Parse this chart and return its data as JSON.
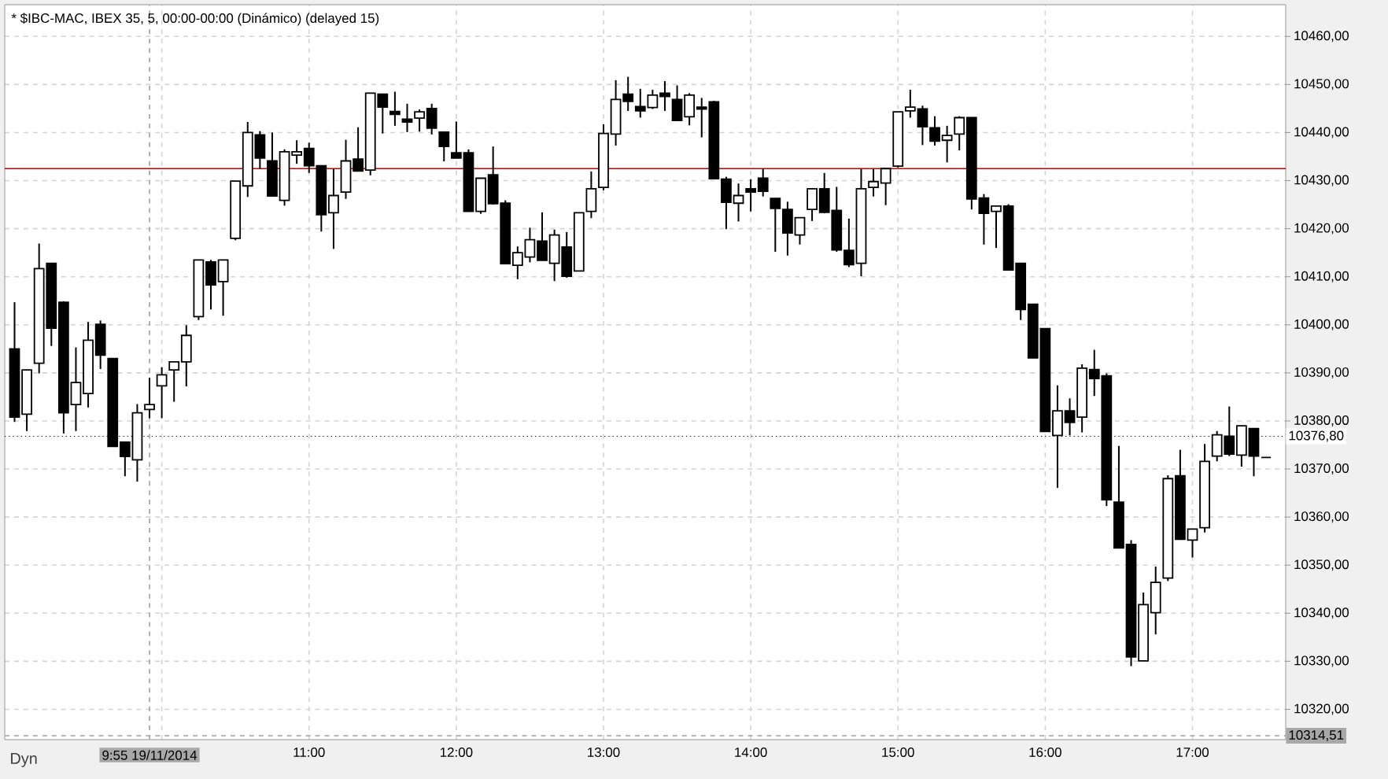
{
  "chart_data": {
    "type": "candlestick",
    "title": "* $IBC-MAC, IBEX 35, 5, 00:00-00:00 (Dinámico) (delayed 15)",
    "x": [
      "2014-11-19T09:00",
      "2014-11-19T09:05",
      "2014-11-19T09:10",
      "2014-11-19T09:15",
      "2014-11-19T09:20",
      "2014-11-19T09:25",
      "2014-11-19T09:30",
      "2014-11-19T09:35",
      "2014-11-19T09:40",
      "2014-11-19T09:45",
      "2014-11-19T09:50",
      "2014-11-19T09:55",
      "2014-11-19T10:00",
      "2014-11-19T10:05",
      "2014-11-19T10:10",
      "2014-11-19T10:15",
      "2014-11-19T10:20",
      "2014-11-19T10:25",
      "2014-11-19T10:30",
      "2014-11-19T10:35",
      "2014-11-19T10:40",
      "2014-11-19T10:45",
      "2014-11-19T10:50",
      "2014-11-19T10:55",
      "2014-11-19T11:00",
      "2014-11-19T11:05",
      "2014-11-19T11:10",
      "2014-11-19T11:15",
      "2014-11-19T11:20",
      "2014-11-19T11:25",
      "2014-11-19T11:30",
      "2014-11-19T11:35",
      "2014-11-19T11:40",
      "2014-11-19T11:45",
      "2014-11-19T11:50",
      "2014-11-19T11:55",
      "2014-11-19T12:00",
      "2014-11-19T12:05",
      "2014-11-19T12:10",
      "2014-11-19T12:15",
      "2014-11-19T12:20",
      "2014-11-19T12:25",
      "2014-11-19T12:30",
      "2014-11-19T12:35",
      "2014-11-19T12:40",
      "2014-11-19T12:45",
      "2014-11-19T12:50",
      "2014-11-19T12:55",
      "2014-11-19T13:00",
      "2014-11-19T13:05",
      "2014-11-19T13:10",
      "2014-11-19T13:15",
      "2014-11-19T13:20",
      "2014-11-19T13:25",
      "2014-11-19T13:30",
      "2014-11-19T13:35",
      "2014-11-19T13:40",
      "2014-11-19T13:45",
      "2014-11-19T13:50",
      "2014-11-19T13:55",
      "2014-11-19T14:00",
      "2014-11-19T14:05",
      "2014-11-19T14:10",
      "2014-11-19T14:15",
      "2014-11-19T14:20",
      "2014-11-19T14:25",
      "2014-11-19T14:30",
      "2014-11-19T14:35",
      "2014-11-19T14:40",
      "2014-11-19T14:45",
      "2014-11-19T14:50",
      "2014-11-19T14:55",
      "2014-11-19T15:00",
      "2014-11-19T15:05",
      "2014-11-19T15:10",
      "2014-11-19T15:15",
      "2014-11-19T15:20",
      "2014-11-19T15:25",
      "2014-11-19T15:30",
      "2014-11-19T15:35",
      "2014-11-19T15:40",
      "2014-11-19T15:45",
      "2014-11-19T15:50",
      "2014-11-19T15:55",
      "2014-11-19T16:00",
      "2014-11-19T16:05",
      "2014-11-19T16:10",
      "2014-11-19T16:15",
      "2014-11-19T16:20",
      "2014-11-19T16:25",
      "2014-11-19T16:30",
      "2014-11-19T16:35",
      "2014-11-19T16:40",
      "2014-11-19T16:45",
      "2014-11-19T16:50",
      "2014-11-19T16:55",
      "2014-11-19T17:00",
      "2014-11-19T17:05",
      "2014-11-19T17:10",
      "2014-11-19T17:15",
      "2014-11-19T17:20",
      "2014-11-19T17:25",
      "2014-11-19T17:30"
    ],
    "ohlc": [
      [
        10395.0,
        10404.7,
        10379.8,
        10380.8
      ],
      [
        10381.4,
        10390.6,
        10377.9,
        10390.6
      ],
      [
        10392.0,
        10416.9,
        10389.9,
        10411.7
      ],
      [
        10412.8,
        10412.8,
        10395.6,
        10399.3
      ],
      [
        10404.7,
        10404.9,
        10377.4,
        10381.7
      ],
      [
        10383.4,
        10395.3,
        10377.9,
        10388.0
      ],
      [
        10385.7,
        10400.6,
        10382.8,
        10396.8
      ],
      [
        10400.1,
        10400.9,
        10390.8,
        10393.7
      ],
      [
        10393.0,
        10393.0,
        10374.7,
        10374.7
      ],
      [
        10375.6,
        10375.6,
        10368.5,
        10372.6
      ],
      [
        10371.9,
        10383.5,
        10367.4,
        10381.7
      ],
      [
        10382.4,
        10389.0,
        10380.6,
        10383.4
      ],
      [
        10387.3,
        10391.2,
        10380.6,
        10389.6
      ],
      [
        10390.6,
        10392.3,
        10384.0,
        10392.3
      ],
      [
        10392.3,
        10399.9,
        10387.2,
        10397.8
      ],
      [
        10401.7,
        10413.5,
        10401.0,
        10413.5
      ],
      [
        10413.1,
        10413.5,
        10403.2,
        10408.3
      ],
      [
        10409.0,
        10413.5,
        10401.9,
        10413.5
      ],
      [
        10418.0,
        10429.9,
        10417.6,
        10429.9
      ],
      [
        10428.9,
        10442.2,
        10426.6,
        10440.0
      ],
      [
        10439.5,
        10440.3,
        10432.5,
        10434.7
      ],
      [
        10434.1,
        10440.0,
        10426.8,
        10426.8
      ],
      [
        10425.9,
        10436.5,
        10424.8,
        10436.0
      ],
      [
        10435.3,
        10438.4,
        10433.5,
        10436.0
      ],
      [
        10436.7,
        10437.9,
        10431.6,
        10433.1
      ],
      [
        10433.1,
        10433.1,
        10419.4,
        10422.9
      ],
      [
        10423.3,
        10432.4,
        10415.8,
        10426.9
      ],
      [
        10427.6,
        10438.5,
        10426.2,
        10434.1
      ],
      [
        10434.5,
        10441.1,
        10432.0,
        10432.0
      ],
      [
        10432.2,
        10448.2,
        10431.1,
        10448.2
      ],
      [
        10448.0,
        10448.0,
        10439.8,
        10445.3
      ],
      [
        10444.4,
        10448.5,
        10441.4,
        10443.8
      ],
      [
        10442.8,
        10446.0,
        10440.1,
        10442.2
      ],
      [
        10443.0,
        10444.8,
        10440.2,
        10444.3
      ],
      [
        10445.0,
        10446.0,
        10439.6,
        10440.9
      ],
      [
        10440.1,
        10440.1,
        10434.0,
        10437.1
      ],
      [
        10435.8,
        10442.3,
        10434.7,
        10434.7
      ],
      [
        10435.8,
        10436.5,
        10423.6,
        10423.6
      ],
      [
        10423.6,
        10430.5,
        10423.1,
        10430.5
      ],
      [
        10431.2,
        10437.1,
        10425.0,
        10425.2
      ],
      [
        10425.3,
        10425.9,
        10412.7,
        10412.7
      ],
      [
        10412.4,
        10416.3,
        10409.5,
        10415.0
      ],
      [
        10414.1,
        10420.2,
        10413.0,
        10417.7
      ],
      [
        10417.4,
        10423.4,
        10413.4,
        10413.4
      ],
      [
        10412.8,
        10419.8,
        10409.1,
        10418.7
      ],
      [
        10416.2,
        10419.3,
        10409.8,
        10410.1
      ],
      [
        10411.2,
        10423.3,
        10411.2,
        10423.3
      ],
      [
        10423.6,
        10431.9,
        10422.2,
        10428.3
      ],
      [
        10428.6,
        10441.7,
        10428.0,
        10439.8
      ],
      [
        10439.7,
        10450.9,
        10437.3,
        10446.9
      ],
      [
        10448.0,
        10451.6,
        10444.5,
        10446.5
      ],
      [
        10445.4,
        10449.1,
        10443.1,
        10444.5
      ],
      [
        10445.2,
        10448.9,
        10444.9,
        10447.8
      ],
      [
        10448.2,
        10450.7,
        10444.5,
        10447.5
      ],
      [
        10446.9,
        10449.8,
        10442.5,
        10442.5
      ],
      [
        10443.3,
        10448.2,
        10441.5,
        10447.8
      ],
      [
        10445.3,
        10447.2,
        10439.0,
        10444.9
      ],
      [
        10446.4,
        10446.6,
        10430.4,
        10430.4
      ],
      [
        10430.3,
        10430.8,
        10419.9,
        10425.5
      ],
      [
        10425.3,
        10429.4,
        10421.5,
        10426.9
      ],
      [
        10428.3,
        10430.3,
        10423.6,
        10427.6
      ],
      [
        10430.5,
        10432.5,
        10426.7,
        10427.8
      ],
      [
        10426.3,
        10426.3,
        10415.2,
        10424.2
      ],
      [
        10424.0,
        10425.6,
        10414.4,
        10419.1
      ],
      [
        10418.7,
        10422.3,
        10416.7,
        10422.3
      ],
      [
        10424.0,
        10428.3,
        10421.6,
        10428.3
      ],
      [
        10428.3,
        10431.6,
        10423.2,
        10423.4
      ],
      [
        10423.8,
        10428.7,
        10415.2,
        10415.6
      ],
      [
        10415.5,
        10422.1,
        10412.0,
        10412.5
      ],
      [
        10412.8,
        10432.4,
        10410.1,
        10428.3
      ],
      [
        10428.6,
        10432.4,
        10426.7,
        10429.8
      ],
      [
        10429.5,
        10432.5,
        10424.9,
        10432.5
      ],
      [
        10433.0,
        10444.3,
        10432.7,
        10444.3
      ],
      [
        10444.5,
        10448.9,
        10443.1,
        10445.3
      ],
      [
        10444.9,
        10445.6,
        10437.4,
        10441.2
      ],
      [
        10441.0,
        10443.4,
        10437.3,
        10438.2
      ],
      [
        10438.4,
        10441.4,
        10433.8,
        10439.4
      ],
      [
        10439.7,
        10443.4,
        10436.3,
        10443.1
      ],
      [
        10443.1,
        10443.1,
        10424.0,
        10426.2
      ],
      [
        10426.4,
        10427.2,
        10416.7,
        10423.2
      ],
      [
        10423.6,
        10424.7,
        10416.0,
        10424.7
      ],
      [
        10424.7,
        10425.1,
        10411.4,
        10411.4
      ],
      [
        10412.8,
        10412.8,
        10401.0,
        10403.2
      ],
      [
        10404.3,
        10404.3,
        10393.1,
        10393.1
      ],
      [
        10399.2,
        10399.2,
        10377.8,
        10377.8
      ],
      [
        10377.0,
        10387.4,
        10366.1,
        10382.1
      ],
      [
        10382.1,
        10384.7,
        10377.0,
        10379.7
      ],
      [
        10380.8,
        10391.8,
        10377.6,
        10391.0
      ],
      [
        10390.7,
        10394.8,
        10385.2,
        10388.8
      ],
      [
        10389.4,
        10389.9,
        10362.3,
        10363.6
      ],
      [
        10363.1,
        10374.8,
        10353.6,
        10353.6
      ],
      [
        10354.3,
        10355.2,
        10329.0,
        10330.9
      ],
      [
        10330.1,
        10344.3,
        10330.1,
        10341.8
      ],
      [
        10340.1,
        10349.7,
        10335.6,
        10346.4
      ],
      [
        10347.3,
        10368.7,
        10346.7,
        10368.0
      ],
      [
        10368.6,
        10374.0,
        10355.4,
        10355.4
      ],
      [
        10355.2,
        10357.5,
        10351.6,
        10357.5
      ],
      [
        10357.8,
        10375.2,
        10356.8,
        10371.6
      ],
      [
        10372.7,
        10377.9,
        10371.6,
        10377.1
      ],
      [
        10376.8,
        10383.0,
        10372.7,
        10373.1
      ],
      [
        10372.9,
        10379.0,
        10370.5,
        10379.0
      ],
      [
        10378.4,
        10378.4,
        10368.5,
        10372.7
      ],
      [
        10372.4,
        10372.4,
        10372.4,
        10372.4
      ]
    ],
    "xlim": [
      "2014-11-19T08:56",
      "2014-11-19T17:38"
    ],
    "ylim": [
      10313.7,
      10466.6
    ],
    "xticks": [
      {
        "value": "2014-11-19T10:00",
        "label": null
      },
      {
        "value": "2014-11-19T11:00",
        "label": "11:00"
      },
      {
        "value": "2014-11-19T12:00",
        "label": "12:00"
      },
      {
        "value": "2014-11-19T13:00",
        "label": "13:00"
      },
      {
        "value": "2014-11-19T14:00",
        "label": "14:00"
      },
      {
        "value": "2014-11-19T15:00",
        "label": "15:00"
      },
      {
        "value": "2014-11-19T16:00",
        "label": "16:00"
      },
      {
        "value": "2014-11-19T17:00",
        "label": "17:00"
      }
    ],
    "yticks": [
      {
        "value": 10320,
        "label": "10320,00"
      },
      {
        "value": 10330,
        "label": "10330,00"
      },
      {
        "value": 10340,
        "label": "10340,00"
      },
      {
        "value": 10350,
        "label": "10350,00"
      },
      {
        "value": 10360,
        "label": "10360,00"
      },
      {
        "value": 10370,
        "label": "10370,00"
      },
      {
        "value": 10380,
        "label": "10380,00"
      },
      {
        "value": 10390,
        "label": "10390,00"
      },
      {
        "value": 10400,
        "label": "10400,00"
      },
      {
        "value": 10410,
        "label": "10410,00"
      },
      {
        "value": 10420,
        "label": "10420,00"
      },
      {
        "value": 10430,
        "label": "10430,00"
      },
      {
        "value": 10440,
        "label": "10440,00"
      },
      {
        "value": 10450,
        "label": "10450,00"
      },
      {
        "value": 10460,
        "label": "10460,00"
      }
    ],
    "grid": true,
    "ref_lines": [
      {
        "axis": "y",
        "value": 10432.5,
        "color": "#cc0000",
        "line_style": "solid"
      },
      {
        "axis": "y",
        "value": 10314.51,
        "label": "10314,51",
        "color": "#a0a0a0",
        "line_style": "dashed"
      },
      {
        "axis": "x",
        "value": "2014-11-19T09:55",
        "label": "9:55 19/11/2014",
        "color": "#a0a0a0",
        "line_style": "dashed"
      },
      {
        "axis": "y",
        "value": 10376.8,
        "label": "10376,80",
        "color": "#000000",
        "line_style": "dotted"
      }
    ],
    "annotations": [
      "Dyn"
    ]
  }
}
